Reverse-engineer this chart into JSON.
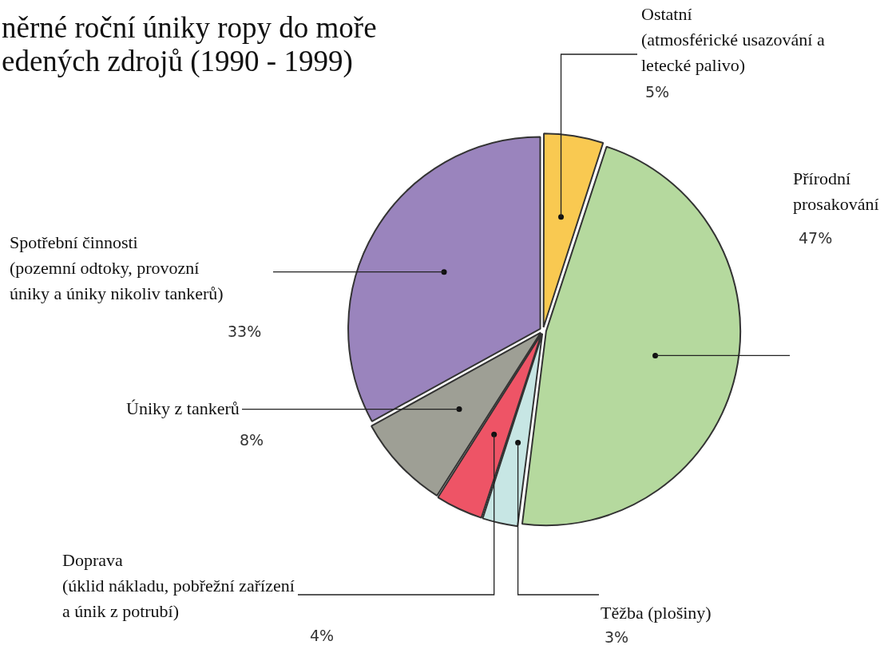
{
  "chart_data": {
    "type": "pie",
    "title": "něrné roční úniky ropy do moře\nedených zdrojů (1990 - 1999)",
    "categories": [
      "Ostatní\n(atmosférické usazování a\nletecké palivo)",
      "Přírodní\nprosakování",
      "Těžba (plošiny)",
      "Doprava\n(úklid nákladu, pobřežní zařízení\na únik z potrubí)",
      "Úniky z tankerů",
      "Spotřební činnosti\n(pozemní odtoky, provozní\núniky a úniky nikoliv tankerů)"
    ],
    "values": [
      5,
      47,
      3,
      4,
      8,
      33
    ],
    "colors": [
      "#f9c951",
      "#b5d99e",
      "#c7e6e4",
      "#ee5466",
      "#9e9f95",
      "#9a84bd"
    ],
    "value_labels": [
      "5%",
      "47%",
      "3%",
      "4%",
      "8%",
      "33%"
    ]
  }
}
